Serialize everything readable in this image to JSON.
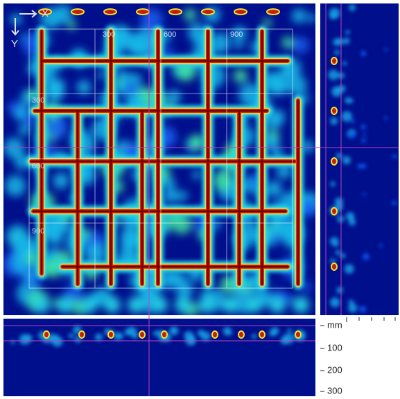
{
  "main_view": {
    "axis_labels": {
      "x": "X",
      "y": "Y"
    },
    "grid_labels_top": [
      "300",
      "600",
      "900"
    ],
    "grid_labels_left": [
      "300",
      "600",
      "900"
    ]
  },
  "depth_scale": {
    "unit": "mm",
    "labels": [
      "100",
      "200",
      "300"
    ]
  }
}
